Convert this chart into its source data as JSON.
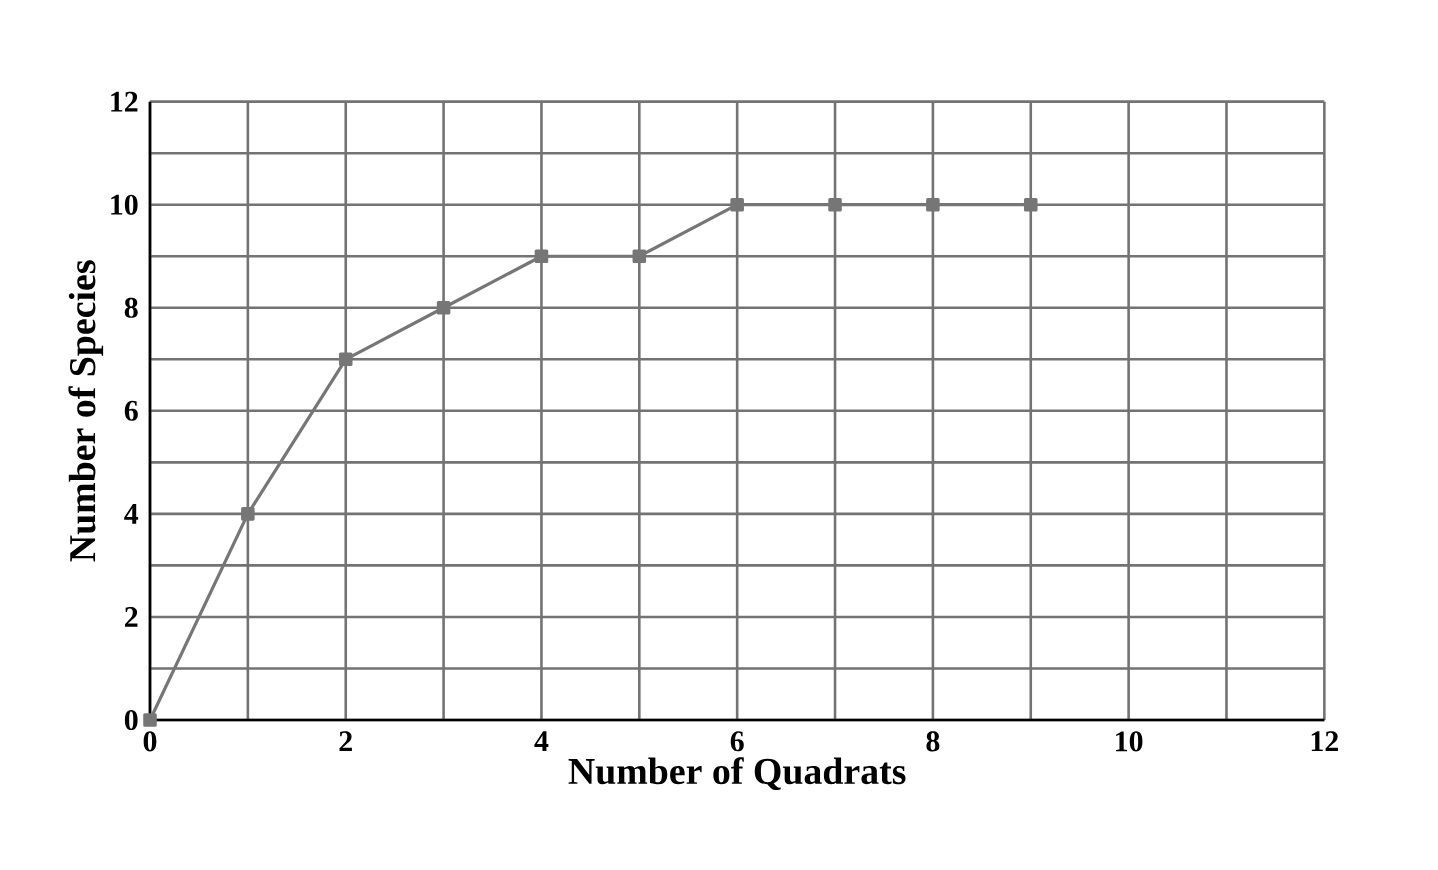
{
  "chart_data": {
    "type": "line",
    "xlabel": "Number of Quadrats",
    "ylabel": "Number of Species",
    "x": [
      0,
      1,
      2,
      3,
      4,
      5,
      6,
      7,
      8,
      9
    ],
    "series": [
      {
        "color": "#767676",
        "values": [
          0,
          4,
          7,
          8,
          9,
          9,
          10,
          10,
          10,
          10
        ]
      }
    ],
    "marker": "square",
    "grid": true,
    "xlim": [
      0,
      12
    ],
    "ylim": [
      0,
      12
    ],
    "xticks": [
      0,
      {
        "value": 1,
        "label": null
      },
      2,
      {
        "value": 3,
        "label": null
      },
      4,
      {
        "value": 5,
        "label": null
      },
      6,
      {
        "value": 7,
        "label": null
      },
      8,
      {
        "value": 9,
        "label": null
      },
      10,
      {
        "value": 11,
        "label": null
      },
      12
    ],
    "yticks": [
      0,
      {
        "value": 1,
        "label": null
      },
      2,
      {
        "value": 3,
        "label": null
      },
      4,
      {
        "value": 5,
        "label": null
      },
      6,
      {
        "value": 7,
        "label": null
      },
      8,
      {
        "value": 9,
        "label": null
      },
      10,
      {
        "value": 11,
        "label": null
      },
      12
    ]
  }
}
